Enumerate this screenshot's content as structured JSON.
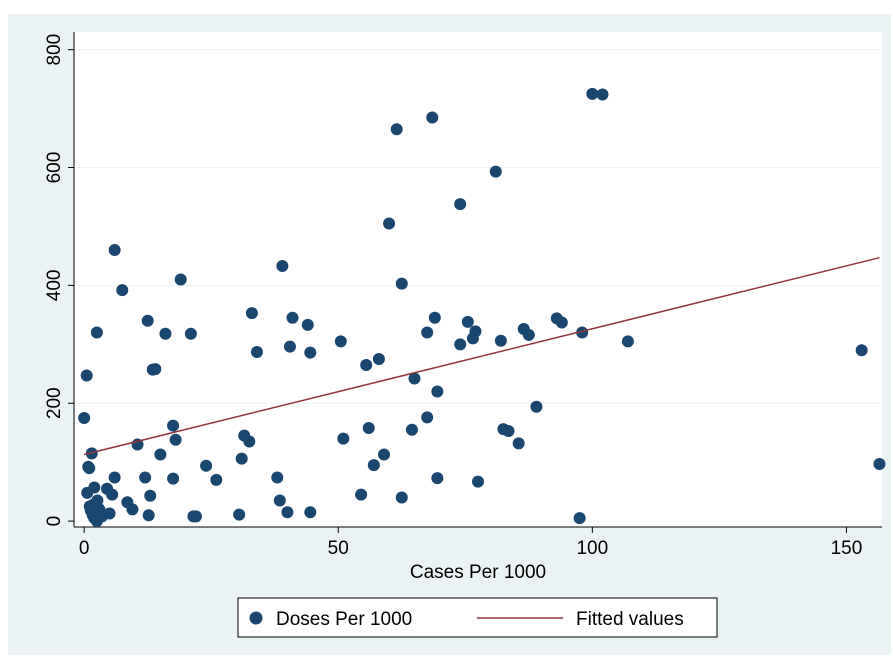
{
  "chart_data": {
    "type": "scatter",
    "title": "",
    "xlabel": "Cases Per 1000",
    "ylabel": "",
    "xlim": [
      -2,
      157
    ],
    "ylim": [
      -10,
      830
    ],
    "x_ticks": [
      0,
      50,
      100,
      150
    ],
    "x_tick_labels": [
      "0",
      "50",
      "100",
      "150"
    ],
    "y_ticks": [
      0,
      200,
      400,
      600,
      800
    ],
    "y_tick_labels": [
      "0",
      "200",
      "400",
      "600",
      "800"
    ],
    "grid": true,
    "legend_position": "bottom",
    "colors": {
      "outer_background": "#eaf2f3",
      "plot_background": "#ffffff",
      "grid": "#eaf2f3",
      "scatter": "#1a476f",
      "fit_line": "#90353b"
    },
    "series": [
      {
        "name": "Doses Per 1000",
        "kind": "scatter",
        "points": [
          [
            0,
            175
          ],
          [
            0.5,
            247
          ],
          [
            0.6,
            48
          ],
          [
            0.8,
            92
          ],
          [
            1,
            90
          ],
          [
            1.1,
            25
          ],
          [
            1.3,
            18
          ],
          [
            1.5,
            115
          ],
          [
            1.7,
            10
          ],
          [
            1.8,
            28
          ],
          [
            2,
            57
          ],
          [
            2,
            5
          ],
          [
            2.2,
            15
          ],
          [
            2.5,
            0
          ],
          [
            2.5,
            320
          ],
          [
            2.6,
            35
          ],
          [
            3,
            20
          ],
          [
            3.5,
            8
          ],
          [
            4.5,
            55
          ],
          [
            5,
            13
          ],
          [
            5.5,
            45
          ],
          [
            6,
            74
          ],
          [
            6,
            460
          ],
          [
            7.5,
            392
          ],
          [
            8.5,
            32
          ],
          [
            9.5,
            20
          ],
          [
            10.5,
            130
          ],
          [
            12,
            74
          ],
          [
            12.5,
            340
          ],
          [
            12.7,
            10
          ],
          [
            13,
            43
          ],
          [
            13.5,
            257
          ],
          [
            14,
            258
          ],
          [
            15,
            113
          ],
          [
            16,
            318
          ],
          [
            17.5,
            162
          ],
          [
            17.5,
            72
          ],
          [
            18,
            138
          ],
          [
            19,
            410
          ],
          [
            21,
            318
          ],
          [
            21.5,
            8
          ],
          [
            22,
            8
          ],
          [
            24,
            94
          ],
          [
            26,
            70
          ],
          [
            30.5,
            11
          ],
          [
            31,
            106
          ],
          [
            31.5,
            145
          ],
          [
            32.5,
            135
          ],
          [
            33,
            353
          ],
          [
            34,
            287
          ],
          [
            38,
            74
          ],
          [
            38.5,
            35
          ],
          [
            39,
            433
          ],
          [
            40,
            15
          ],
          [
            40.5,
            296
          ],
          [
            41,
            345
          ],
          [
            44,
            333
          ],
          [
            44.5,
            286
          ],
          [
            44.5,
            15
          ],
          [
            50.5,
            305
          ],
          [
            51,
            140
          ],
          [
            54.5,
            45
          ],
          [
            55.5,
            265
          ],
          [
            56,
            158
          ],
          [
            57,
            95
          ],
          [
            58,
            275
          ],
          [
            59,
            113
          ],
          [
            60,
            505
          ],
          [
            61.5,
            665
          ],
          [
            62.5,
            40
          ],
          [
            62.5,
            403
          ],
          [
            64.5,
            155
          ],
          [
            65,
            242
          ],
          [
            67.5,
            176
          ],
          [
            67.5,
            320
          ],
          [
            68.5,
            685
          ],
          [
            69,
            345
          ],
          [
            69.5,
            220
          ],
          [
            69.5,
            73
          ],
          [
            74,
            538
          ],
          [
            74,
            300
          ],
          [
            75.5,
            338
          ],
          [
            76.5,
            310
          ],
          [
            77,
            322
          ],
          [
            77.5,
            67
          ],
          [
            81,
            593
          ],
          [
            82,
            306
          ],
          [
            82.5,
            156
          ],
          [
            83.5,
            153
          ],
          [
            85.5,
            132
          ],
          [
            86.5,
            326
          ],
          [
            87.5,
            316
          ],
          [
            89,
            194
          ],
          [
            93,
            344
          ],
          [
            94,
            337
          ],
          [
            97.5,
            5
          ],
          [
            98,
            320
          ],
          [
            100,
            725
          ],
          [
            102,
            724
          ],
          [
            107,
            305
          ],
          [
            153,
            290
          ],
          [
            156.5,
            97
          ]
        ]
      },
      {
        "name": "Fitted values",
        "kind": "line",
        "points": [
          [
            0,
            113
          ],
          [
            156.5,
            447
          ]
        ]
      }
    ]
  }
}
